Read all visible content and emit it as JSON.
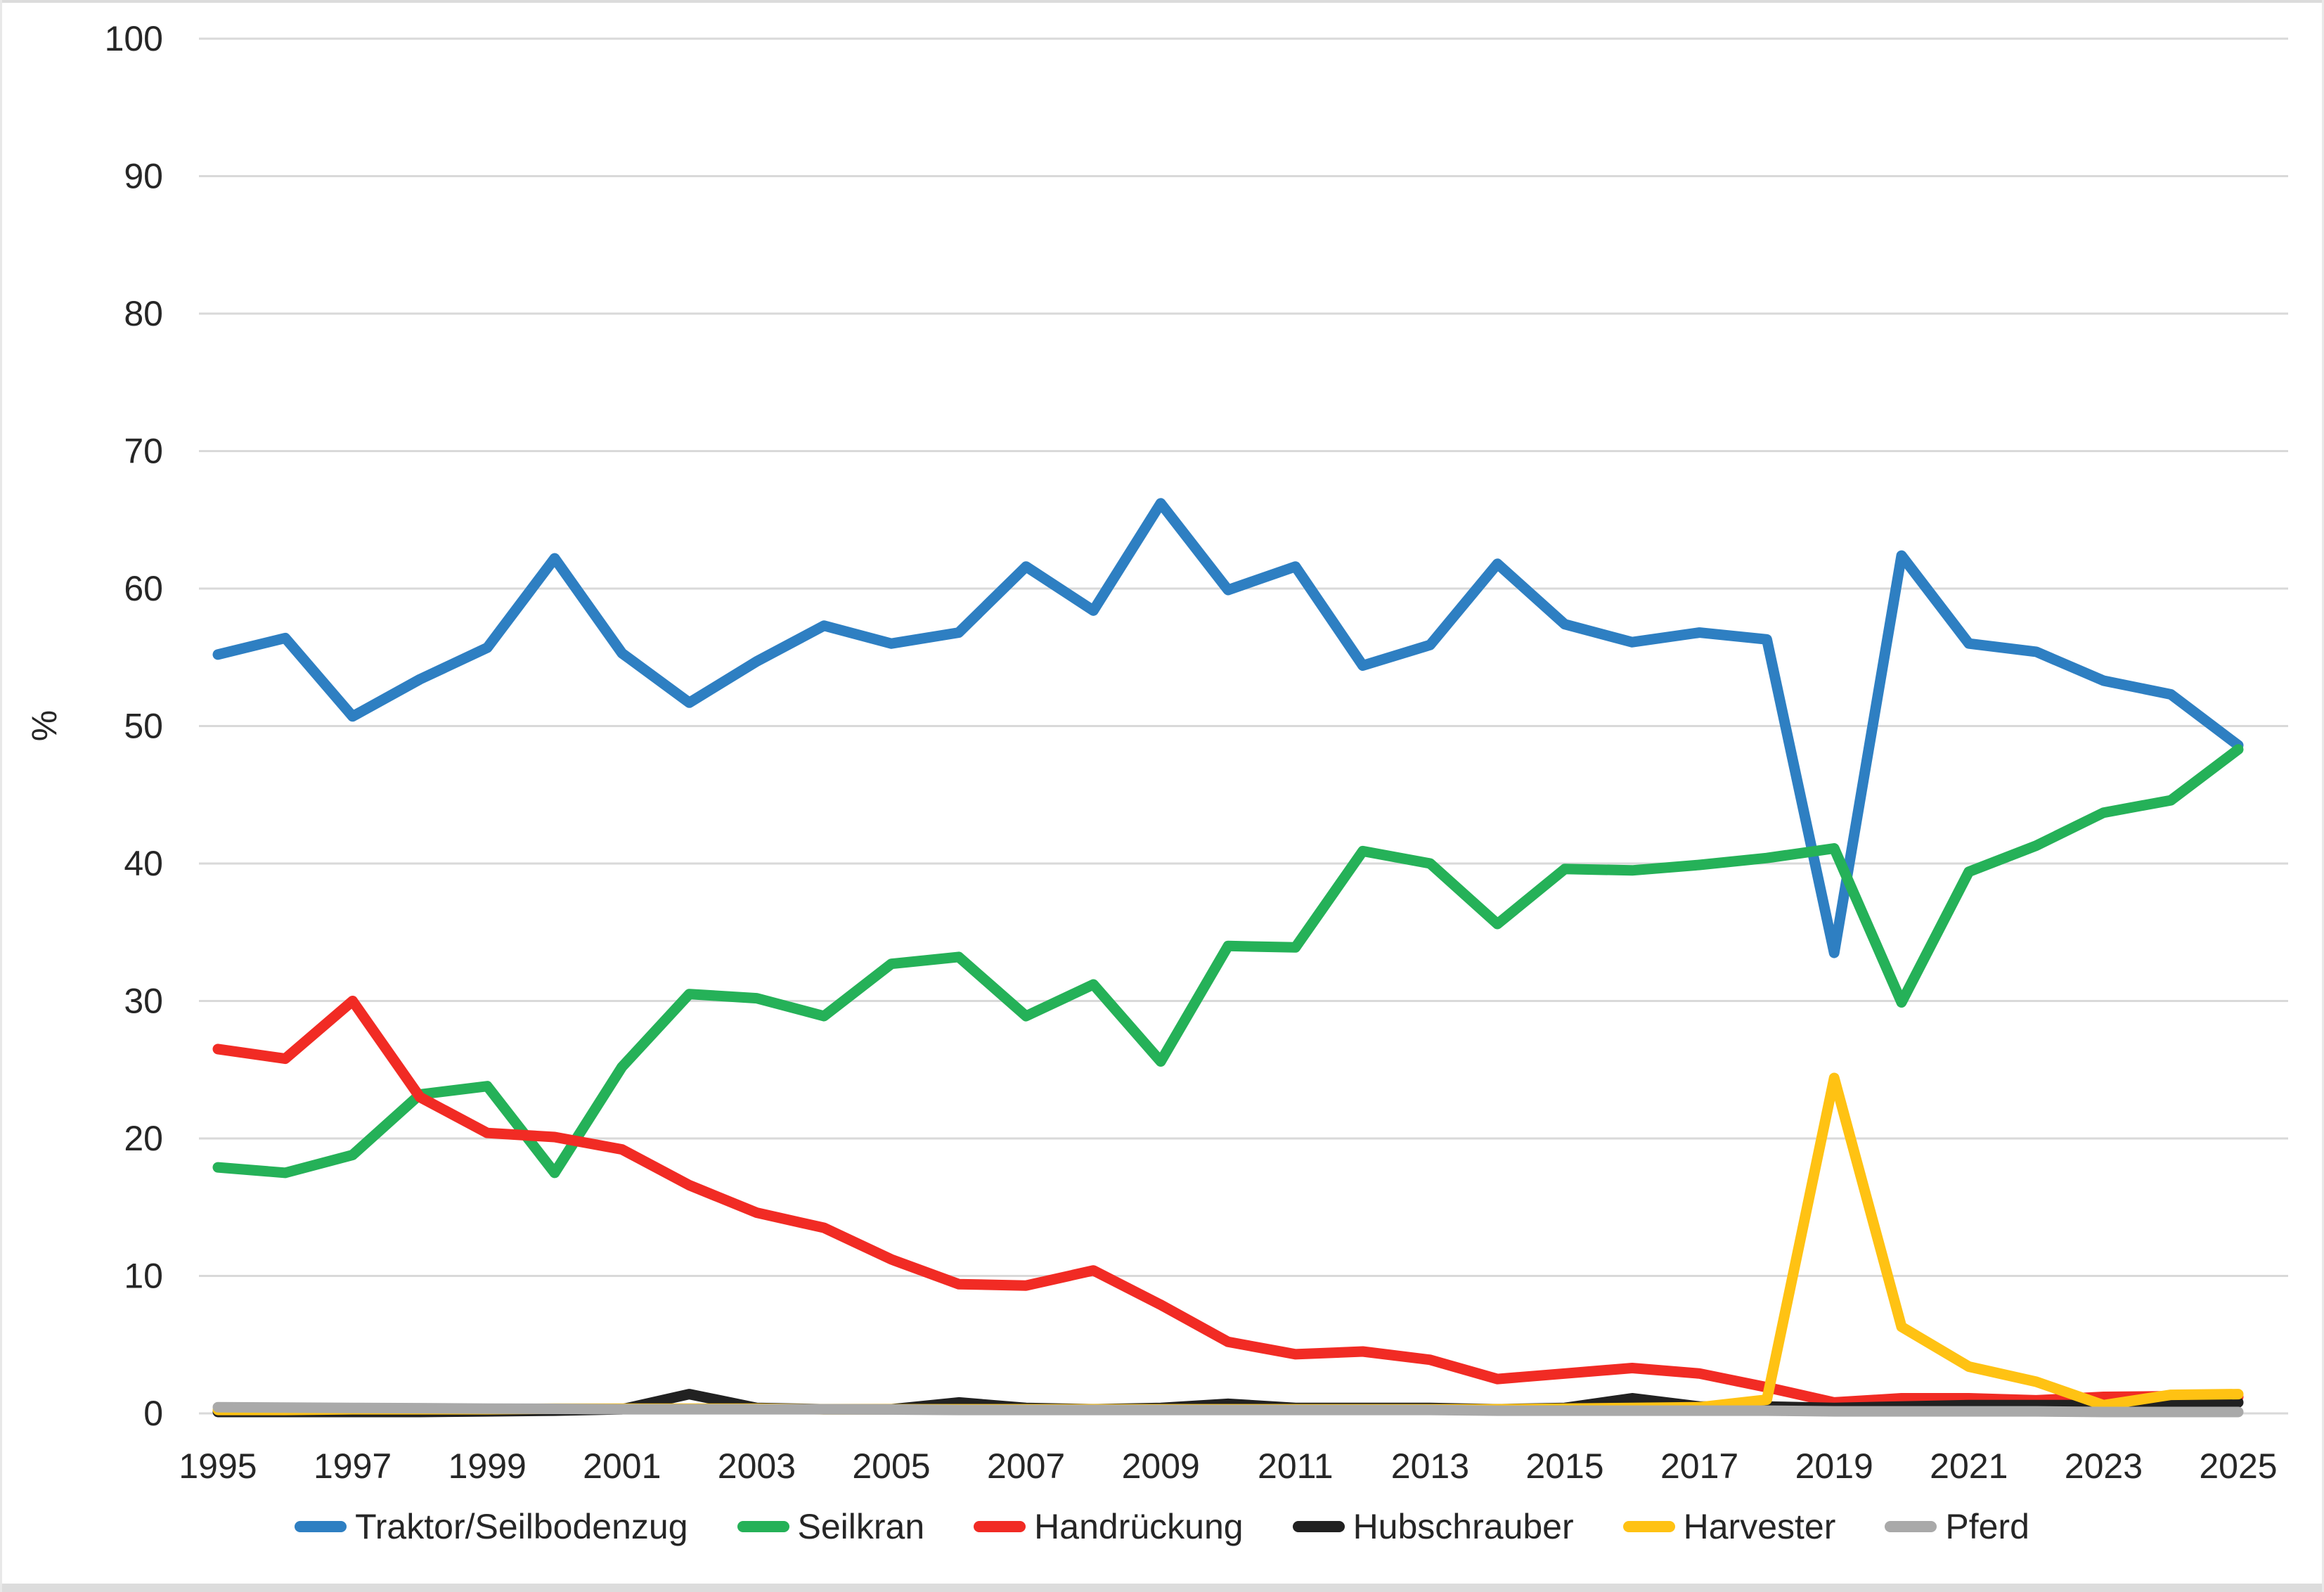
{
  "chart_data": {
    "type": "line",
    "title": "",
    "xlabel": "",
    "ylabel": "%",
    "ylim": [
      0,
      100
    ],
    "ytick_step": 10,
    "xtick_step": 2,
    "grid": true,
    "legend_position": "bottom",
    "x": [
      1995,
      1996,
      1997,
      1998,
      1999,
      2000,
      2001,
      2002,
      2003,
      2004,
      2005,
      2006,
      2007,
      2008,
      2009,
      2010,
      2011,
      2012,
      2013,
      2014,
      2015,
      2016,
      2017,
      2018,
      2019,
      2020,
      2021,
      2022,
      2023,
      2024,
      2025
    ],
    "xtick_labels": [
      "1995",
      "1997",
      "1999",
      "2001",
      "2003",
      "2005",
      "2007",
      "2009",
      "2011",
      "2013",
      "2015",
      "2017",
      "2019",
      "2021",
      "2023",
      "2025"
    ],
    "ytick_labels": [
      "0",
      "10",
      "20",
      "30",
      "40",
      "50",
      "60",
      "70",
      "80",
      "90",
      "100"
    ],
    "series": [
      {
        "name": "Traktor/Seilbodenzug",
        "color": "#2E7FC2",
        "values": [
          55.2,
          56.4,
          50.7,
          53.4,
          55.7,
          62.2,
          55.3,
          51.7,
          54.7,
          57.3,
          56.0,
          56.8,
          61.6,
          58.4,
          66.2,
          59.9,
          61.6,
          54.4,
          55.9,
          61.8,
          57.4,
          56.1,
          56.8,
          56.3,
          33.5,
          62.4,
          56.0,
          55.4,
          53.3,
          52.3,
          48.6
        ]
      },
      {
        "name": "Seilkran",
        "color": "#25B158",
        "values": [
          17.9,
          17.5,
          18.8,
          23.2,
          23.8,
          17.5,
          25.2,
          30.5,
          30.2,
          28.9,
          32.7,
          33.2,
          28.9,
          31.2,
          25.6,
          34.0,
          33.9,
          40.9,
          40.0,
          35.6,
          39.6,
          39.5,
          39.9,
          40.4,
          41.1,
          29.9,
          39.4,
          41.3,
          43.7,
          44.6,
          48.3
        ]
      },
      {
        "name": "Handrückung",
        "color": "#F12B24",
        "values": [
          26.5,
          25.8,
          30.0,
          23.0,
          20.4,
          20.1,
          19.2,
          16.6,
          14.6,
          13.5,
          11.2,
          9.4,
          9.3,
          10.4,
          7.9,
          5.2,
          4.3,
          4.5,
          3.9,
          2.5,
          2.9,
          3.3,
          2.9,
          1.9,
          0.8,
          1.1,
          1.1,
          0.95,
          1.2,
          1.25,
          1.2
        ]
      },
      {
        "name": "Hubschrauber",
        "color": "#212121",
        "values": [
          0.1,
          0.1,
          0.1,
          0.1,
          0.15,
          0.2,
          0.3,
          1.4,
          0.4,
          0.3,
          0.3,
          0.8,
          0.4,
          0.3,
          0.4,
          0.7,
          0.4,
          0.4,
          0.4,
          0.3,
          0.4,
          1.1,
          0.5,
          0.5,
          0.4,
          0.5,
          0.6,
          0.6,
          0.6,
          0.85,
          0.8
        ]
      },
      {
        "name": "Harvester",
        "color": "#FFC213",
        "values": [
          0.25,
          0.25,
          0.3,
          0.3,
          0.3,
          0.35,
          0.35,
          0.35,
          0.35,
          0.3,
          0.3,
          0.3,
          0.3,
          0.3,
          0.3,
          0.3,
          0.3,
          0.3,
          0.3,
          0.3,
          0.35,
          0.4,
          0.45,
          1.0,
          24.4,
          6.3,
          3.4,
          2.3,
          0.6,
          1.35,
          1.4
        ]
      },
      {
        "name": "Pferd",
        "color": "#A9A9A9",
        "values": [
          0.45,
          0.42,
          0.4,
          0.38,
          0.35,
          0.33,
          0.3,
          0.3,
          0.3,
          0.3,
          0.28,
          0.25,
          0.25,
          0.25,
          0.25,
          0.25,
          0.25,
          0.25,
          0.25,
          0.2,
          0.2,
          0.2,
          0.2,
          0.2,
          0.15,
          0.15,
          0.15,
          0.15,
          0.1,
          0.1,
          0.1
        ]
      }
    ],
    "axis_text_color": "#262626",
    "gridline_color": "#D9D9D9"
  }
}
